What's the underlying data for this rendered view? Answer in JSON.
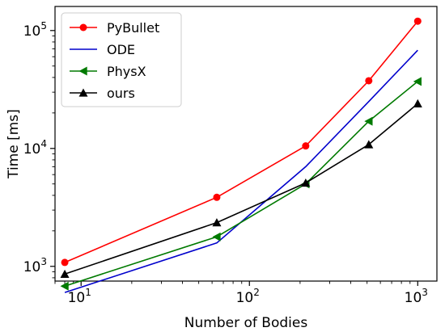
{
  "chart_data": {
    "type": "line",
    "title": "",
    "xlabel": "Number of Bodies",
    "ylabel": "Time [ms]",
    "xscale": "log",
    "yscale": "log",
    "xlim": [
      7,
      1300
    ],
    "ylim": [
      750,
      160000
    ],
    "x": [
      8,
      64,
      216,
      512,
      1000
    ],
    "x_ticks": [
      {
        "value": 10,
        "base": "10",
        "exp": "1"
      },
      {
        "value": 100,
        "base": "10",
        "exp": "2"
      },
      {
        "value": 1000,
        "base": "10",
        "exp": "3"
      }
    ],
    "y_ticks": [
      {
        "value": 1000,
        "base": "10",
        "exp": "3"
      },
      {
        "value": 10000,
        "base": "10",
        "exp": "4"
      },
      {
        "value": 100000,
        "base": "10",
        "exp": "5"
      }
    ],
    "grid": false,
    "legend_position": "top-left",
    "series": [
      {
        "name": "PyBullet",
        "values": [
          1080,
          3850,
          10500,
          37500,
          120000
        ],
        "color": "#ff0000",
        "marker": "circle"
      },
      {
        "name": "ODE",
        "values": [
          600,
          1580,
          7000,
          25000,
          68000
        ],
        "color": "#0000cc",
        "marker": "none"
      },
      {
        "name": "PhysX",
        "values": [
          680,
          1780,
          5000,
          17000,
          37000
        ],
        "color": "#007a00",
        "marker": "triangle-left"
      },
      {
        "name": "ours",
        "values": [
          860,
          2350,
          5100,
          10800,
          24000
        ],
        "color": "#000000",
        "marker": "triangle-up"
      }
    ]
  }
}
